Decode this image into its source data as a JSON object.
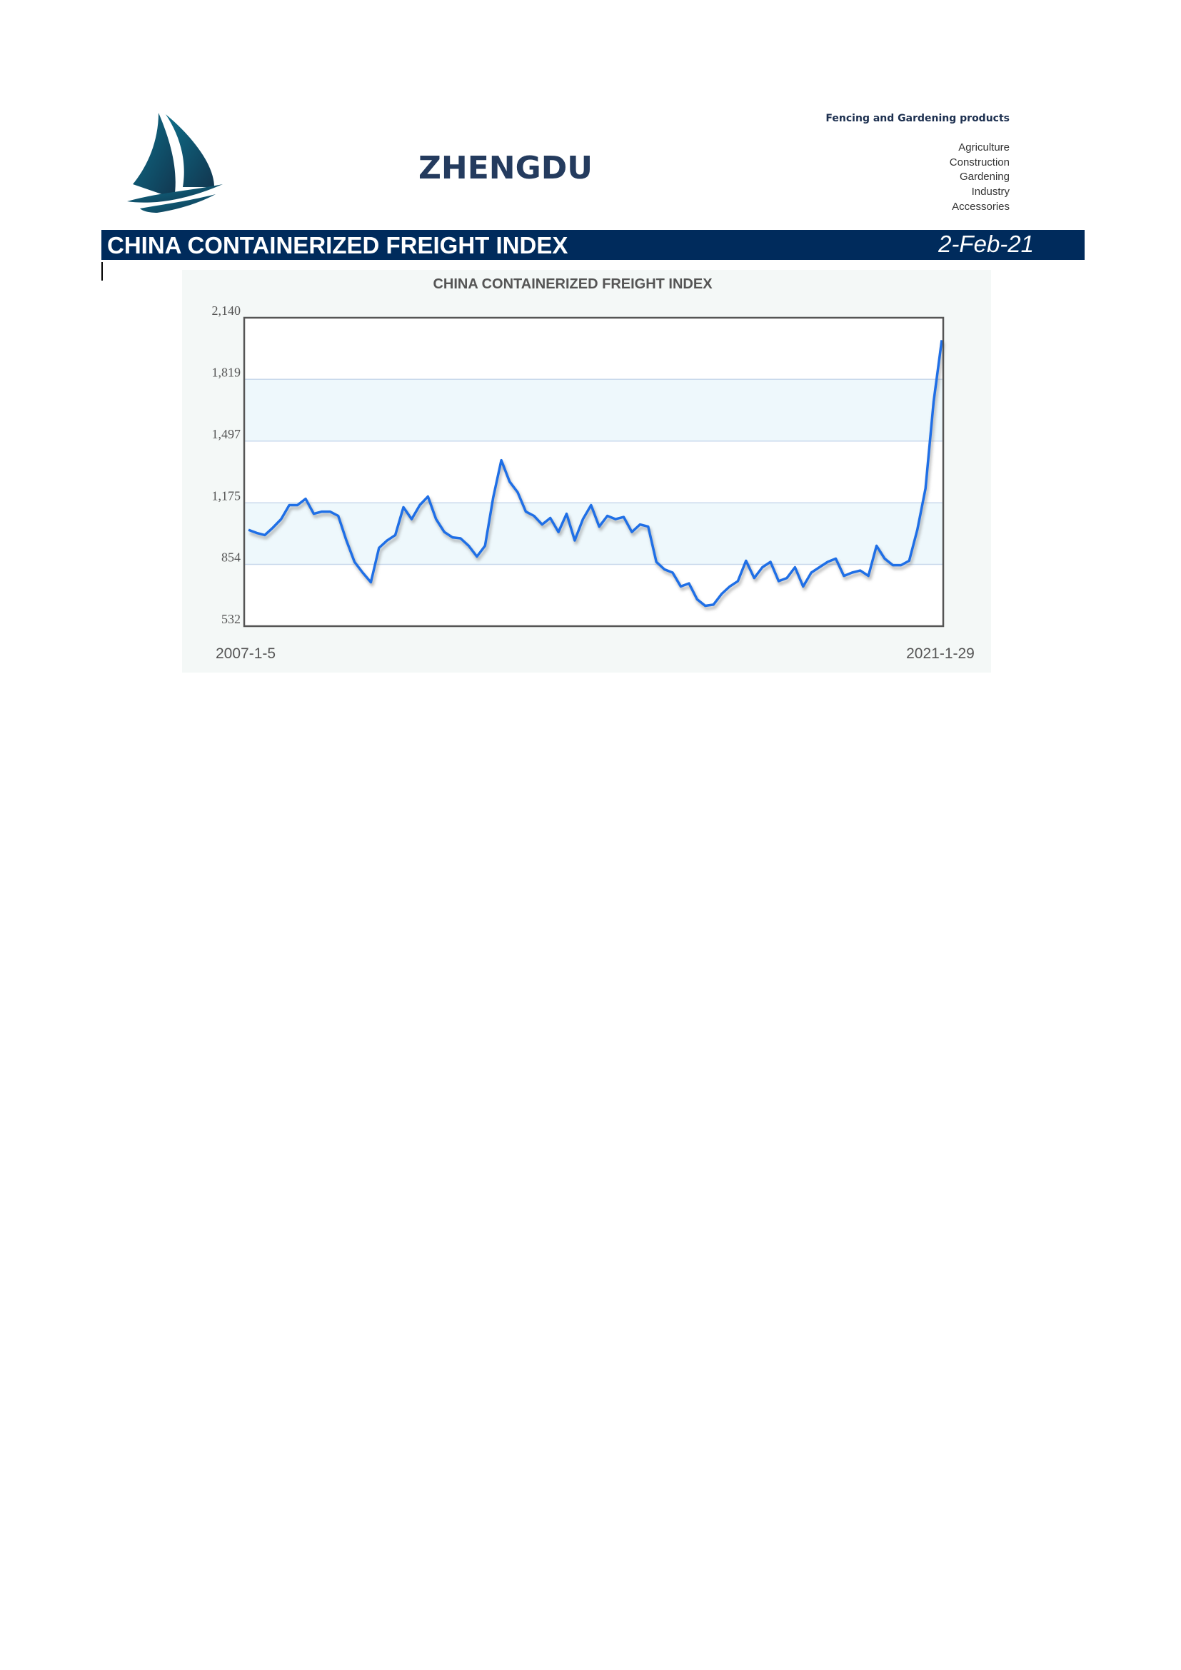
{
  "header": {
    "brand": "ZHENGDU",
    "tagline": "Fencing and Gardening products",
    "products": [
      "Agriculture",
      "Construction",
      "Gardening",
      "Industry",
      "Accessories"
    ]
  },
  "banner": {
    "title": "CHINA CONTAINERIZED FREIGHT INDEX",
    "date": "2-Feb-21"
  },
  "chart_data": {
    "type": "line",
    "title": "CHINA CONTAINERIZED FREIGHT INDEX",
    "categories": [
      "2007-1-5",
      null,
      null,
      null,
      null,
      null,
      null,
      null,
      null,
      null,
      null,
      null,
      null,
      null,
      null,
      null,
      null,
      null,
      null,
      null,
      null,
      null,
      null,
      null,
      null,
      null,
      null,
      null,
      null,
      null,
      null,
      null,
      null,
      null,
      null,
      null,
      null,
      null,
      null,
      null,
      null,
      null,
      null,
      null,
      null,
      null,
      null,
      null,
      null,
      null,
      null,
      null,
      null,
      null,
      null,
      null,
      null,
      null,
      null,
      null,
      null,
      null,
      null,
      null,
      null,
      null,
      null,
      null,
      null,
      null,
      null,
      null,
      null,
      null,
      null,
      null,
      null,
      null,
      null,
      null,
      null,
      null,
      null,
      null,
      null,
      "2021-1-29"
    ],
    "values": [
      1034,
      1018,
      1007,
      1046,
      1090,
      1163,
      1163,
      1196,
      1118,
      1129,
      1129,
      1107,
      979,
      867,
      811,
      761,
      940,
      979,
      1007,
      1152,
      1090,
      1163,
      1208,
      1090,
      1023,
      995,
      990,
      951,
      895,
      951,
      1202,
      1397,
      1286,
      1230,
      1129,
      1107,
      1062,
      1096,
      1023,
      1118,
      979,
      1090,
      1163,
      1051,
      1107,
      1090,
      1101,
      1023,
      1062,
      1051,
      867,
      828,
      811,
      739,
      755,
      672,
      638,
      644,
      700,
      739,
      767,
      873,
      783,
      839,
      867,
      767,
      783,
      839,
      739,
      811,
      839,
      867,
      884,
      794,
      811,
      822,
      794,
      951,
      884,
      850,
      850,
      873,
      1034,
      1250,
      1704,
      2023
    ],
    "color": "#1f6fe6",
    "ylim": [
      532,
      2140
    ],
    "yticks": [
      532,
      854,
      {
        "value": 1175,
        "label": "1,175"
      },
      {
        "value": 1497,
        "label": "1,497"
      },
      {
        "value": 1819,
        "label": "1,819"
      },
      {
        "value": 2140,
        "label": "2,140"
      }
    ],
    "grid": true
  }
}
